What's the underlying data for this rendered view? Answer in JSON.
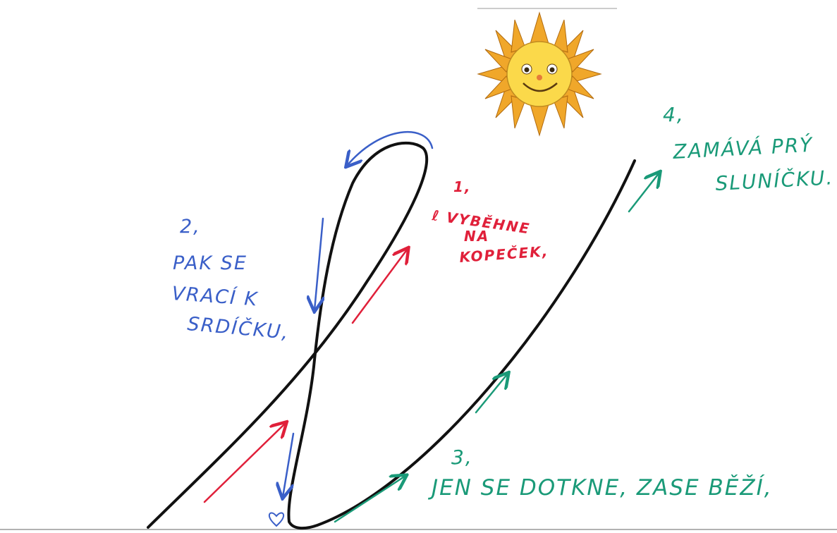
{
  "steps": [
    {
      "number": "1,",
      "lines": [
        "ℓ VYBĚHNE",
        "NA",
        "KOPEČEK,"
      ]
    },
    {
      "number": "2,",
      "lines": [
        "PAK SE",
        "VRACÍ K",
        "SRDÍČKU,"
      ]
    },
    {
      "number": "3,",
      "lines": [
        "JEN SE DOTKNE, ZASE BĚŽÍ,"
      ]
    },
    {
      "number": "4,",
      "lines": [
        "ZAMÁVÁ PRÝ",
        "SLUNÍČKU."
      ]
    }
  ]
}
